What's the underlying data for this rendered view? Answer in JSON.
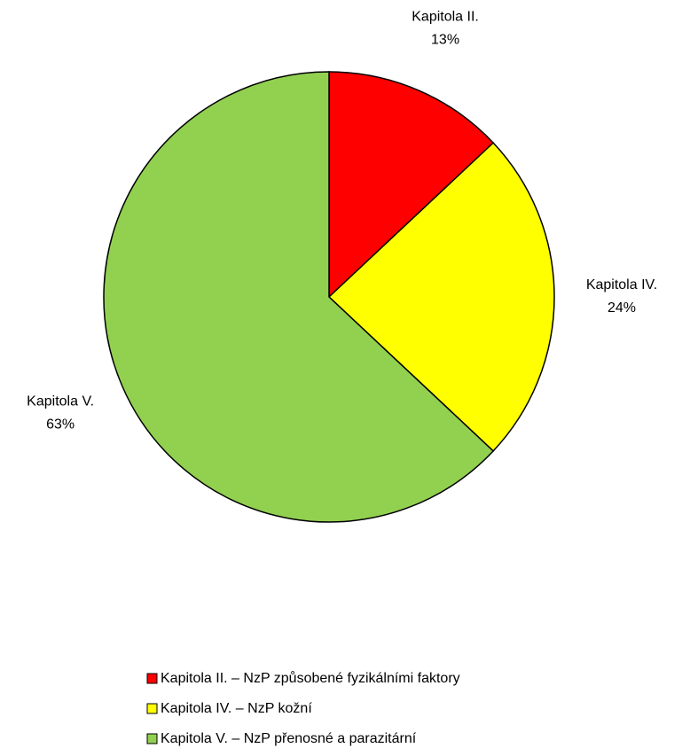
{
  "chart_data": {
    "type": "pie",
    "categories": [
      "Kapitola II. – NzP způsobené fyzikálními faktory",
      "Kapitola IV. – NzP kožní",
      "Kapitola V. – NzP přenosné a parazitární"
    ],
    "slice_labels": [
      "Kapitola II.",
      "Kapitola IV.",
      "Kapitola V."
    ],
    "values": [
      13,
      24,
      63
    ],
    "value_labels": [
      "13%",
      "24%",
      "63%"
    ],
    "colors": [
      "#ff0000",
      "#ffff00",
      "#92d050"
    ],
    "legend": "bottom"
  }
}
